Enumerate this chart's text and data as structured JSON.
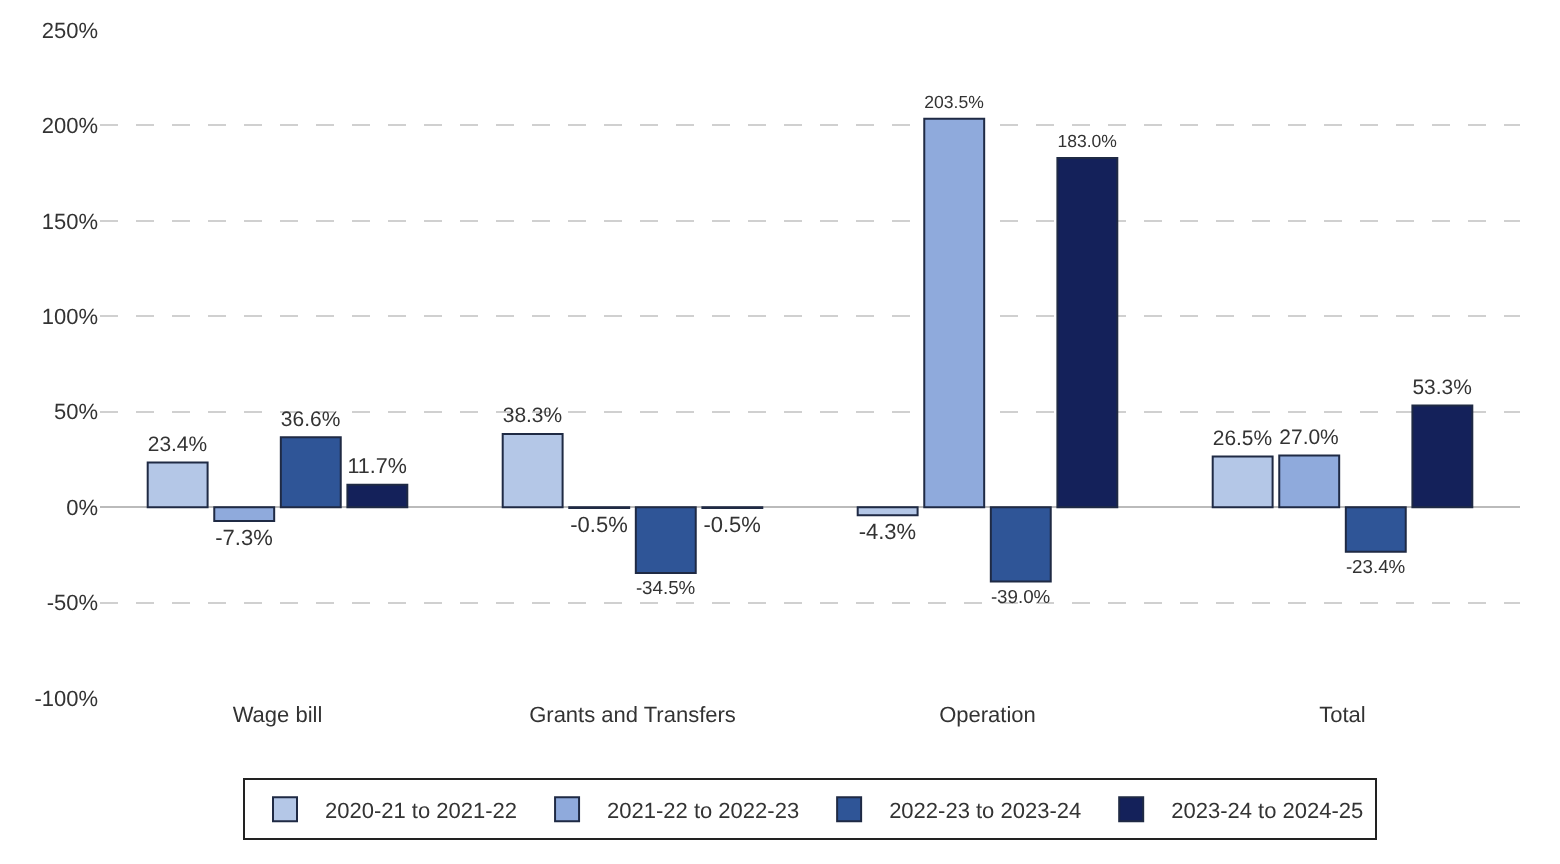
{
  "chart_data": {
    "type": "bar",
    "categories": [
      "Wage bill",
      "Grants and Transfers",
      "Operation",
      "Total"
    ],
    "series": [
      {
        "name": "2020-21 to 2021-22",
        "color": "#b4c7e7",
        "values": [
          23.4,
          38.3,
          -4.3,
          26.5
        ],
        "value_labels": [
          "23.4%",
          "38.3%",
          "-4.3%",
          "26.5%"
        ]
      },
      {
        "name": "2021-22 to 2022-23",
        "color": "#8faadc",
        "values": [
          -7.3,
          -0.5,
          203.5,
          27.0
        ],
        "value_labels": [
          "-7.3%",
          "-0.5%",
          "203.5%",
          "27.0%"
        ]
      },
      {
        "name": "2022-23 to 2023-24",
        "color": "#2f5597",
        "values": [
          36.6,
          -34.5,
          -39.0,
          -23.4
        ],
        "value_labels": [
          "36.6%",
          "-34.5%",
          "-39.0%",
          "-23.4%"
        ]
      },
      {
        "name": "2023-24 to 2024-25",
        "color": "#14215a",
        "values": [
          11.7,
          -0.5,
          183.0,
          53.3
        ],
        "value_labels": [
          "11.7%",
          "-0.5%",
          "183.0%",
          "53.3%"
        ]
      }
    ],
    "ylim": [
      -100,
      250
    ],
    "yticks": [
      {
        "value": -100,
        "label": "-100%"
      },
      {
        "value": -50,
        "label": "-50%"
      },
      {
        "value": 0,
        "label": "0%"
      },
      {
        "value": 50,
        "label": "50%"
      },
      {
        "value": 100,
        "label": "100%"
      },
      {
        "value": 150,
        "label": "150%"
      },
      {
        "value": 200,
        "label": "200%"
      },
      {
        "value": 250,
        "label": "250%"
      }
    ],
    "grid": "y",
    "legend": "bottom"
  }
}
